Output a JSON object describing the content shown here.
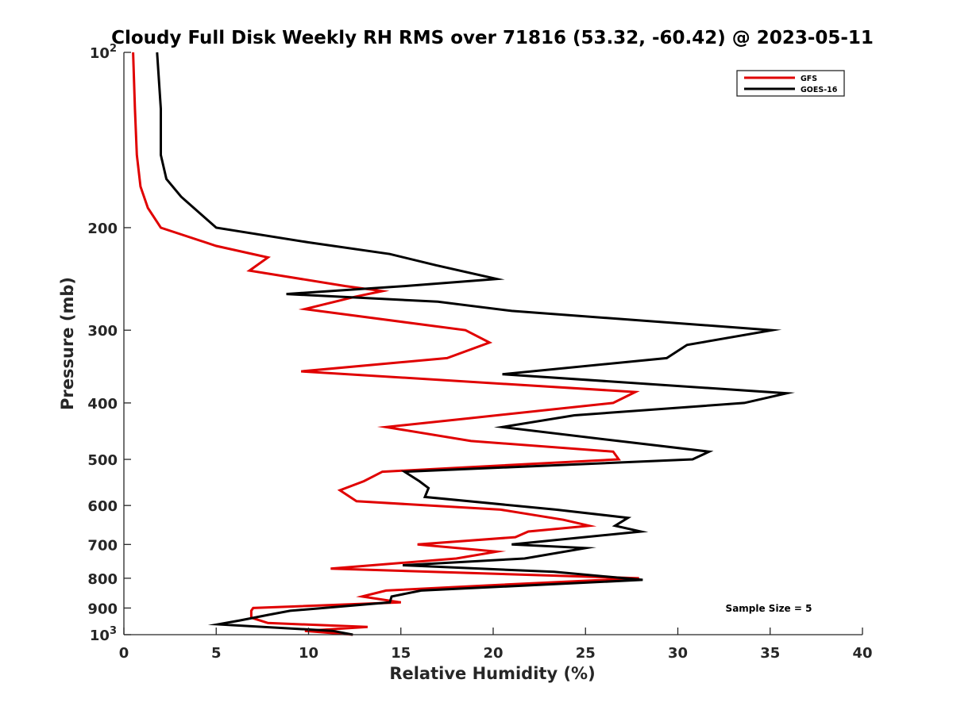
{
  "chart_data": {
    "type": "line",
    "title": "Cloudy Full Disk Weekly RH RMS over 71816 (53.32, -60.42) @ 2023-05-11",
    "xlabel": "Relative Humidity (%)",
    "ylabel": "Pressure (mb)",
    "xlim": [
      0,
      40
    ],
    "ylim": [
      100,
      1000
    ],
    "y_scale": "log",
    "y_reversed": true,
    "grid": false,
    "legend_position": "top-right",
    "x_ticks": [
      "0",
      "5",
      "10",
      "15",
      "20",
      "25",
      "30",
      "35",
      "40"
    ],
    "y_ticks": [
      {
        "value": 100,
        "base": "10",
        "exp": "2"
      },
      {
        "value": 200,
        "label": "200"
      },
      {
        "value": 300,
        "label": "300"
      },
      {
        "value": 400,
        "label": "400"
      },
      {
        "value": 500,
        "label": "500"
      },
      {
        "value": 600,
        "label": "600"
      },
      {
        "value": 700,
        "label": "700"
      },
      {
        "value": 800,
        "label": "800"
      },
      {
        "value": 900,
        "label": "900"
      },
      {
        "value": 1000,
        "base": "10",
        "exp": "3"
      }
    ],
    "annotation": "Sample Size = 5",
    "series": [
      {
        "name": "GFS",
        "color": "#e00000",
        "points": [
          [
            0.5,
            100
          ],
          [
            0.6,
            125
          ],
          [
            0.7,
            150
          ],
          [
            0.9,
            170
          ],
          [
            1.3,
            185
          ],
          [
            2.0,
            200
          ],
          [
            5.0,
            215
          ],
          [
            7.8,
            225
          ],
          [
            6.8,
            237
          ],
          [
            12.0,
            252
          ],
          [
            14.0,
            257
          ],
          [
            12.5,
            263
          ],
          [
            9.8,
            276
          ],
          [
            18.5,
            300
          ],
          [
            19.8,
            315
          ],
          [
            17.5,
            335
          ],
          [
            9.6,
            353
          ],
          [
            27.7,
            383
          ],
          [
            26.5,
            400
          ],
          [
            18.7,
            425
          ],
          [
            14.2,
            440
          ],
          [
            18.8,
            465
          ],
          [
            26.5,
            485
          ],
          [
            26.8,
            500
          ],
          [
            14.0,
            525
          ],
          [
            13.0,
            545
          ],
          [
            11.7,
            565
          ],
          [
            12.6,
            590
          ],
          [
            20.4,
            610
          ],
          [
            23.8,
            635
          ],
          [
            25.2,
            650
          ],
          [
            21.9,
            665
          ],
          [
            21.2,
            680
          ],
          [
            15.9,
            700
          ],
          [
            20.2,
            720
          ],
          [
            18.0,
            740
          ],
          [
            11.2,
            770
          ],
          [
            27.9,
            800
          ],
          [
            19.0,
            825
          ],
          [
            14.2,
            840
          ],
          [
            12.9,
            860
          ],
          [
            15.0,
            880
          ],
          [
            7.0,
            900
          ],
          [
            6.9,
            910
          ],
          [
            6.9,
            935
          ],
          [
            7.8,
            955
          ],
          [
            13.2,
            970
          ],
          [
            9.8,
            985
          ],
          [
            12.4,
            1000
          ]
        ]
      },
      {
        "name": "GOES-16",
        "color": "#000000",
        "points": [
          [
            1.8,
            100
          ],
          [
            2.0,
            125
          ],
          [
            2.0,
            150
          ],
          [
            2.3,
            165
          ],
          [
            3.1,
            177
          ],
          [
            5.0,
            200
          ],
          [
            10.0,
            212
          ],
          [
            14.4,
            222
          ],
          [
            16.9,
            232
          ],
          [
            20.2,
            245
          ],
          [
            15.2,
            252
          ],
          [
            8.8,
            260
          ],
          [
            17.0,
            268
          ],
          [
            21.0,
            278
          ],
          [
            35.1,
            300
          ],
          [
            30.5,
            318
          ],
          [
            29.4,
            335
          ],
          [
            20.5,
            357
          ],
          [
            35.9,
            385
          ],
          [
            33.6,
            400
          ],
          [
            24.4,
            420
          ],
          [
            20.5,
            440
          ],
          [
            26.8,
            465
          ],
          [
            31.7,
            485
          ],
          [
            30.8,
            500
          ],
          [
            15.2,
            525
          ],
          [
            16.0,
            545
          ],
          [
            16.5,
            560
          ],
          [
            16.3,
            580
          ],
          [
            23.4,
            610
          ],
          [
            27.3,
            630
          ],
          [
            26.6,
            650
          ],
          [
            28.0,
            665
          ],
          [
            21.0,
            700
          ],
          [
            25.0,
            710
          ],
          [
            21.7,
            740
          ],
          [
            15.1,
            760
          ],
          [
            23.3,
            780
          ],
          [
            28.1,
            805
          ],
          [
            16.1,
            840
          ],
          [
            14.5,
            860
          ],
          [
            14.4,
            880
          ],
          [
            9.0,
            910
          ],
          [
            7.8,
            925
          ],
          [
            6.3,
            945
          ],
          [
            5.1,
            960
          ],
          [
            11.3,
            985
          ],
          [
            12.4,
            1000
          ]
        ]
      }
    ]
  }
}
